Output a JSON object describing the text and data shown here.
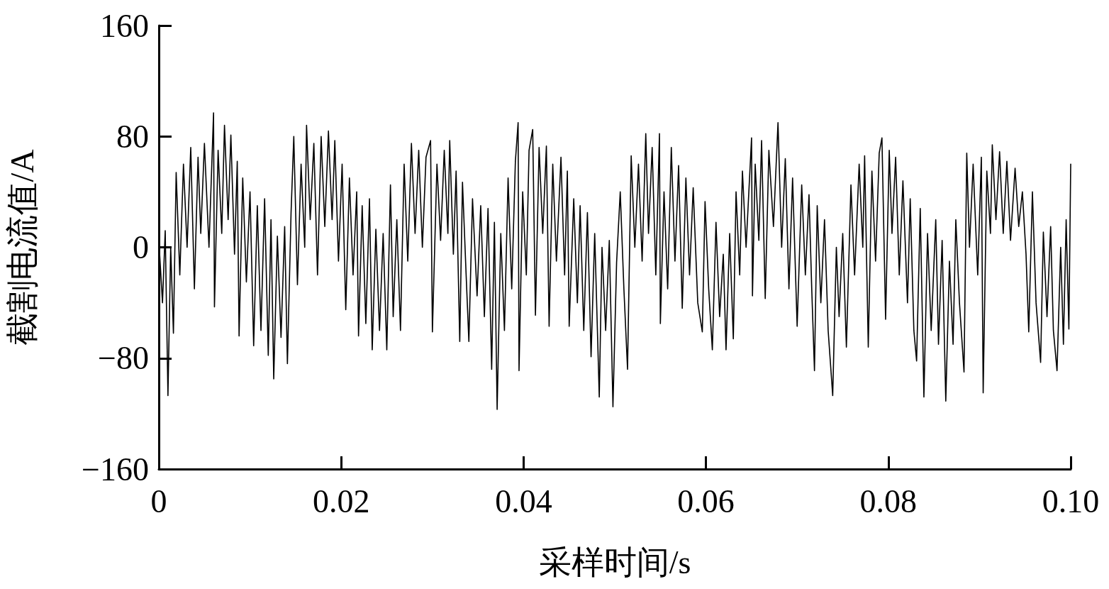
{
  "chart_data": {
    "type": "line",
    "xlabel": "采样时间/s",
    "ylabel": "截割电流值/A",
    "color": "#000000",
    "xlim": [
      0,
      0.1
    ],
    "xticks": [
      0,
      0.02,
      0.04,
      0.06,
      0.08,
      {
        "value": 0.1,
        "label": "0.10"
      }
    ],
    "ylim": [
      -160,
      160
    ],
    "yticks": [
      {
        "value": -160,
        "label": "−160"
      },
      {
        "value": -80,
        "label": "−80"
      },
      0,
      80,
      160
    ],
    "x": [
      0,
      0.0004,
      0.0007,
      0.001,
      0.0013,
      0.0016,
      0.0019,
      0.0023,
      0.0027,
      0.0031,
      0.0035,
      0.0039,
      0.0043,
      0.0046,
      0.005,
      0.0055,
      0.006,
      0.0061,
      0.0065,
      0.0069,
      0.0072,
      0.0076,
      0.0079,
      0.0083,
      0.0086,
      0.0088,
      0.0092,
      0.0096,
      0.01,
      0.0104,
      0.0108,
      0.0112,
      0.0116,
      0.012,
      0.0123,
      0.0126,
      0.013,
      0.0134,
      0.0138,
      0.0141,
      0.0145,
      0.0148,
      0.0152,
      0.0156,
      0.016,
      0.0162,
      0.0166,
      0.017,
      0.0174,
      0.0178,
      0.0182,
      0.0186,
      0.019,
      0.0193,
      0.0197,
      0.0201,
      0.0205,
      0.0209,
      0.0213,
      0.0217,
      0.0219,
      0.0223,
      0.0227,
      0.0231,
      0.0234,
      0.0238,
      0.0242,
      0.0246,
      0.025,
      0.0254,
      0.0257,
      0.0261,
      0.0265,
      0.0269,
      0.0273,
      0.0277,
      0.0281,
      0.0285,
      0.0289,
      0.0293,
      0.0298,
      0.03,
      0.0305,
      0.0309,
      0.0313,
      0.0317,
      0.0319,
      0.0323,
      0.0326,
      0.033,
      0.0333,
      0.0337,
      0.034,
      0.0344,
      0.0349,
      0.0353,
      0.0357,
      0.0361,
      0.0365,
      0.0368,
      0.0371,
      0.0375,
      0.0379,
      0.0383,
      0.0387,
      0.0391,
      0.0394,
      0.0395,
      0.0399,
      0.0403,
      0.0406,
      0.041,
      0.0413,
      0.0417,
      0.0421,
      0.0425,
      0.0428,
      0.0432,
      0.0436,
      0.0441,
      0.0445,
      0.0448,
      0.045,
      0.0455,
      0.0459,
      0.0462,
      0.0466,
      0.047,
      0.0474,
      0.0478,
      0.0483,
      0.0486,
      0.049,
      0.0494,
      0.0498,
      0.0502,
      0.0506,
      0.051,
      0.0514,
      0.0518,
      0.0522,
      0.0526,
      0.053,
      0.0534,
      0.0537,
      0.0541,
      0.0545,
      0.0549,
      0.055,
      0.0554,
      0.0558,
      0.0562,
      0.0566,
      0.057,
      0.0574,
      0.0578,
      0.0582,
      0.0586,
      0.0591,
      0.0596,
      0.0599,
      0.0603,
      0.0607,
      0.0611,
      0.0615,
      0.0619,
      0.0622,
      0.0626,
      0.063,
      0.0633,
      0.0637,
      0.064,
      0.0644,
      0.065,
      0.0651,
      0.0654,
      0.0658,
      0.0661,
      0.0665,
      0.0669,
      0.0674,
      0.0679,
      0.0683,
      0.0687,
      0.0691,
      0.0695,
      0.07,
      0.0705,
      0.0709,
      0.0713,
      0.0716,
      0.0719,
      0.0722,
      0.0726,
      0.073,
      0.0734,
      0.0739,
      0.0743,
      0.0746,
      0.075,
      0.0754,
      0.0759,
      0.0763,
      0.0768,
      0.0772,
      0.0774,
      0.0778,
      0.0782,
      0.0786,
      0.079,
      0.0793,
      0.0797,
      0.0801,
      0.0804,
      0.0808,
      0.0812,
      0.0816,
      0.0821,
      0.0824,
      0.0828,
      0.0831,
      0.0835,
      0.0839,
      0.0843,
      0.0847,
      0.0852,
      0.0855,
      0.0859,
      0.0863,
      0.0867,
      0.0871,
      0.0874,
      0.0878,
      0.0883,
      0.0886,
      0.0889,
      0.0893,
      0.0898,
      0.0902,
      0.0904,
      0.0908,
      0.0912,
      0.0914,
      0.0918,
      0.0922,
      0.0926,
      0.093,
      0.0934,
      0.0939,
      0.0943,
      0.0947,
      0.0951,
      0.0954,
      0.0958,
      0.0962,
      0.0967,
      0.097,
      0.0974,
      0.0978,
      0.0981,
      0.0985,
      0.0989,
      0.0992,
      0.0995,
      0.0998,
      0.1
    ],
    "values": [
      5,
      -40,
      12,
      -107,
      0,
      -62,
      54,
      -20,
      60,
      0,
      72,
      -30,
      65,
      10,
      75,
      0,
      97,
      -43,
      70,
      10,
      88,
      20,
      81,
      -5,
      62,
      -64,
      50,
      -25,
      40,
      -71,
      30,
      -60,
      35,
      -78,
      20,
      -95,
      8,
      -65,
      15,
      -84,
      25,
      80,
      -27,
      60,
      0,
      88,
      20,
      75,
      -20,
      80,
      15,
      84,
      20,
      77,
      -10,
      60,
      -45,
      50,
      -20,
      40,
      -64,
      30,
      -55,
      35,
      -74,
      13,
      -60,
      10,
      -74,
      45,
      -50,
      20,
      -60,
      60,
      -10,
      75,
      10,
      70,
      0,
      65,
      77,
      -61,
      60,
      5,
      70,
      10,
      77,
      -5,
      55,
      -68,
      47,
      -20,
      -68,
      35,
      -35,
      30,
      -50,
      28,
      -88,
      18,
      -117,
      10,
      -60,
      50,
      -30,
      62,
      90,
      -89,
      40,
      -20,
      70,
      85,
      -49,
      72,
      10,
      73,
      -57,
      60,
      -10,
      65,
      -20,
      55,
      -57,
      35,
      -40,
      30,
      -60,
      25,
      -79,
      10,
      -108,
      0,
      -60,
      5,
      -115,
      -11,
      40,
      -30,
      -88,
      66,
      0,
      60,
      -10,
      82,
      10,
      72,
      -20,
      82,
      -55,
      40,
      -30,
      72,
      -10,
      59,
      -44,
      50,
      -20,
      43,
      -40,
      -61,
      33,
      -30,
      -74,
      18,
      -50,
      -5,
      -74,
      10,
      -66,
      40,
      -20,
      55,
      0,
      79,
      -35,
      60,
      5,
      77,
      -37,
      70,
      15,
      90,
      0,
      64,
      -30,
      50,
      -57,
      45,
      -20,
      38,
      -30,
      -89,
      30,
      -40,
      20,
      -60,
      -107,
      0,
      -50,
      10,
      -72,
      45,
      -20,
      60,
      0,
      66,
      -72,
      55,
      -10,
      68,
      79,
      -52,
      70,
      10,
      65,
      -20,
      48,
      -40,
      35,
      -60,
      -82,
      28,
      -108,
      10,
      -60,
      20,
      -70,
      5,
      -111,
      -10,
      -70,
      20,
      -40,
      -90,
      68,
      0,
      60,
      -20,
      65,
      -105,
      55,
      10,
      74,
      20,
      69,
      10,
      62,
      5,
      57,
      15,
      40,
      -5,
      -61,
      40,
      -40,
      -83,
      11,
      -50,
      15,
      -60,
      -89,
      0,
      -70,
      20,
      -59,
      60
    ]
  }
}
